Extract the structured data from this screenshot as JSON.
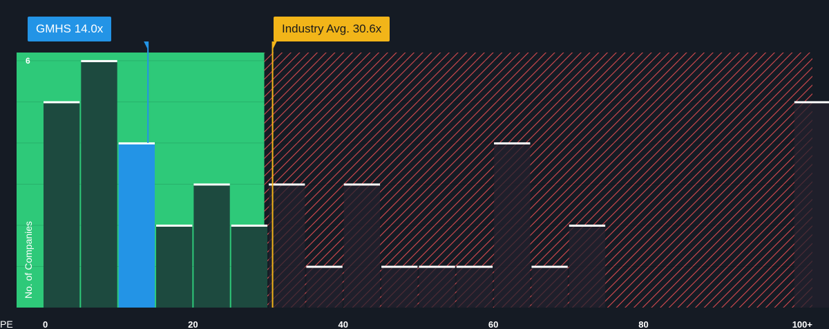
{
  "colors": {
    "background": "#151b24",
    "undervalued_zone": "#2ec979",
    "overvalued_zone": "#151b24",
    "overvalued_hatch": "#d94b50",
    "bar_fill": "#1d4a3f",
    "bar_fill_overvalued": "#23222e",
    "highlight_bar": "#2394e6",
    "bar_cap": "#ffffff",
    "industry_line": "#f2b519",
    "company_line": "#2394e6"
  },
  "company_badge": {
    "label": "GMHS 14.0x",
    "value": 14.0
  },
  "industry_badge": {
    "label": "Industry Avg. 30.6x",
    "value": 30.6
  },
  "chart_data": {
    "type": "bar",
    "title": "",
    "xlabel": "PE",
    "ylabel": "No. of Companies",
    "x_ticks": [
      {
        "value": 0,
        "label": "0"
      },
      {
        "value": 20,
        "label": "20"
      },
      {
        "value": 40,
        "label": "40"
      },
      {
        "value": 60,
        "label": "60"
      },
      {
        "value": 80,
        "label": "80"
      },
      {
        "value": 100,
        "label": "100+"
      }
    ],
    "y_ticks": [
      {
        "value": 6,
        "label": "6"
      }
    ],
    "xlim": [
      0,
      102.5
    ],
    "ylim": [
      0,
      6.2
    ],
    "bin_width": 5,
    "bins": [
      {
        "start": 0,
        "count": 5
      },
      {
        "start": 5,
        "count": 6
      },
      {
        "start": 10,
        "count": 4,
        "highlight": true
      },
      {
        "start": 15,
        "count": 2
      },
      {
        "start": 20,
        "count": 3
      },
      {
        "start": 25,
        "count": 2
      },
      {
        "start": 30,
        "count": 3
      },
      {
        "start": 35,
        "count": 1
      },
      {
        "start": 40,
        "count": 3
      },
      {
        "start": 45,
        "count": 1
      },
      {
        "start": 50,
        "count": 1
      },
      {
        "start": 55,
        "count": 1
      },
      {
        "start": 60,
        "count": 4
      },
      {
        "start": 65,
        "count": 1
      },
      {
        "start": 70,
        "count": 2
      },
      {
        "start": 100,
        "count": 5
      }
    ],
    "company_pe": 14.0,
    "industry_pe": 30.6,
    "undervalued_max": 29.5,
    "grid": true
  }
}
